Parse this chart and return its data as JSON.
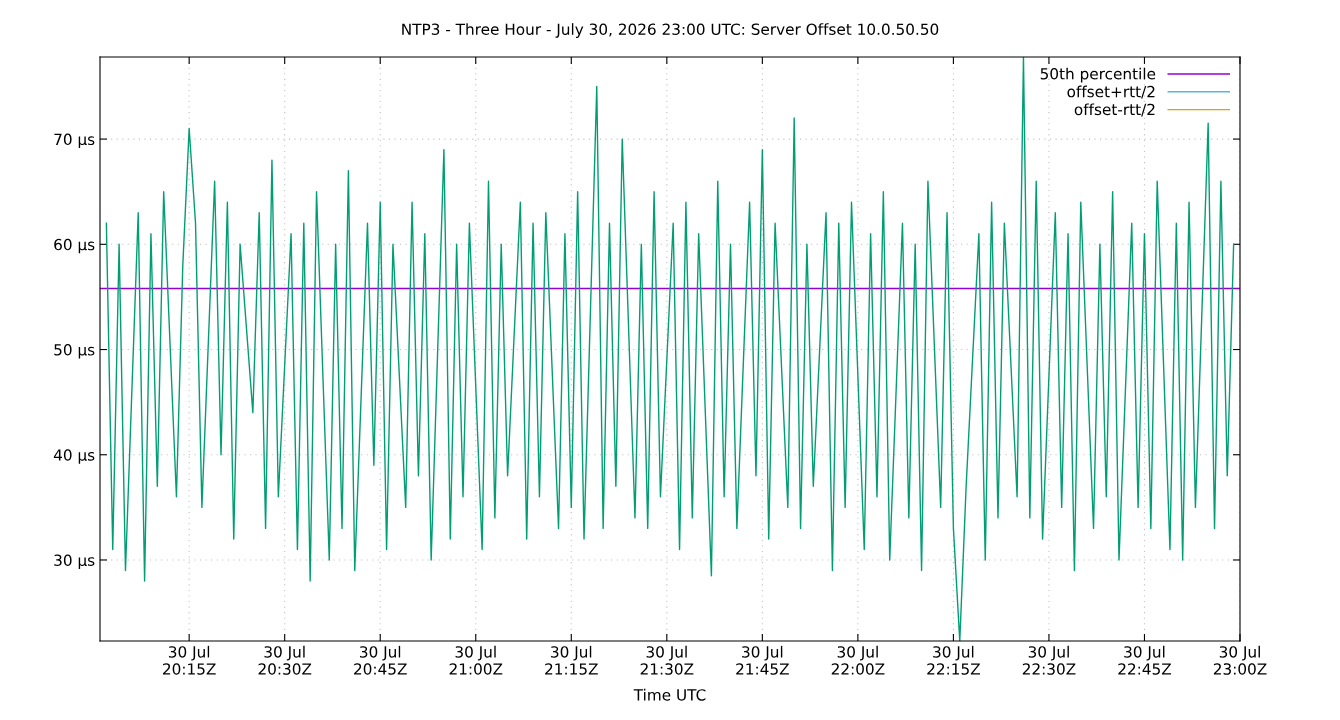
{
  "chart_data": {
    "type": "line",
    "title": "NTP3 - Three Hour - July 30, 2026 23:00 UTC: Server Offset 10.0.50.50",
    "xlabel": "Time UTC",
    "xlim": [
      "2026-07-30T20:01",
      "2026-07-30T23:00"
    ],
    "xticks": [
      {
        "value": "2026-07-30T20:15",
        "label": "30 Jul\n20:15Z"
      },
      {
        "value": "2026-07-30T20:30",
        "label": "30 Jul\n20:30Z"
      },
      {
        "value": "2026-07-30T20:45",
        "label": "30 Jul\n20:45Z"
      },
      {
        "value": "2026-07-30T21:00",
        "label": "30 Jul\n21:00Z"
      },
      {
        "value": "2026-07-30T21:15",
        "label": "30 Jul\n21:15Z"
      },
      {
        "value": "2026-07-30T21:30",
        "label": "30 Jul\n21:30Z"
      },
      {
        "value": "2026-07-30T21:45",
        "label": "30 Jul\n21:45Z"
      },
      {
        "value": "2026-07-30T22:00",
        "label": "30 Jul\n22:00Z"
      },
      {
        "value": "2026-07-30T22:15",
        "label": "30 Jul\n22:15Z"
      },
      {
        "value": "2026-07-30T22:30",
        "label": "30 Jul\n22:30Z"
      },
      {
        "value": "2026-07-30T22:45",
        "label": "30 Jul\n22:45Z"
      },
      {
        "value": "2026-07-30T23:00",
        "label": "30 Jul\n23:00Z"
      }
    ],
    "ylim": [
      22.3,
      77.8
    ],
    "yticks": [
      {
        "value": 30,
        "label": "30 µs"
      },
      {
        "value": 40,
        "label": "40 µs"
      },
      {
        "value": 50,
        "label": "50 µs"
      },
      {
        "value": 60,
        "label": "60 µs"
      },
      {
        "value": 70,
        "label": "70 µs"
      }
    ],
    "grid": true,
    "legend": "top right",
    "series": [
      {
        "name": "50th percentile",
        "color": "#9400d3",
        "x": [
          "2026-07-30T20:01",
          "2026-07-30T23:00"
        ],
        "values": [
          55.8,
          55.8
        ]
      },
      {
        "color": "#009e73",
        "x": [
          "2026-07-30T20:02",
          "2026-07-30T20:03",
          "2026-07-30T20:04",
          "2026-07-30T20:05",
          "2026-07-30T20:07",
          "2026-07-30T20:08",
          "2026-07-30T20:09",
          "2026-07-30T20:10",
          "2026-07-30T20:11",
          "2026-07-30T20:13",
          "2026-07-30T20:14",
          "2026-07-30T20:15",
          "2026-07-30T20:16",
          "2026-07-30T20:17",
          "2026-07-30T20:19",
          "2026-07-30T20:20",
          "2026-07-30T20:21",
          "2026-07-30T20:22",
          "2026-07-30T20:23",
          "2026-07-30T20:25",
          "2026-07-30T20:26",
          "2026-07-30T20:27",
          "2026-07-30T20:28",
          "2026-07-30T20:29",
          "2026-07-30T20:31",
          "2026-07-30T20:32",
          "2026-07-30T20:33",
          "2026-07-30T20:34",
          "2026-07-30T20:35",
          "2026-07-30T20:37",
          "2026-07-30T20:38",
          "2026-07-30T20:39",
          "2026-07-30T20:40",
          "2026-07-30T20:41",
          "2026-07-30T20:43",
          "2026-07-30T20:44",
          "2026-07-30T20:45",
          "2026-07-30T20:46",
          "2026-07-30T20:47",
          "2026-07-30T20:49",
          "2026-07-30T20:50",
          "2026-07-30T20:51",
          "2026-07-30T20:52",
          "2026-07-30T20:53",
          "2026-07-30T20:55",
          "2026-07-30T20:56",
          "2026-07-30T20:57",
          "2026-07-30T20:58",
          "2026-07-30T20:59",
          "2026-07-30T21:01",
          "2026-07-30T21:02",
          "2026-07-30T21:03",
          "2026-07-30T21:04",
          "2026-07-30T21:05",
          "2026-07-30T21:07",
          "2026-07-30T21:08",
          "2026-07-30T21:09",
          "2026-07-30T21:10",
          "2026-07-30T21:11",
          "2026-07-30T21:13",
          "2026-07-30T21:14",
          "2026-07-30T21:15",
          "2026-07-30T21:16",
          "2026-07-30T21:17",
          "2026-07-30T21:19",
          "2026-07-30T21:20",
          "2026-07-30T21:21",
          "2026-07-30T21:22",
          "2026-07-30T21:23",
          "2026-07-30T21:25",
          "2026-07-30T21:26",
          "2026-07-30T21:27",
          "2026-07-30T21:28",
          "2026-07-30T21:29",
          "2026-07-30T21:31",
          "2026-07-30T21:32",
          "2026-07-30T21:33",
          "2026-07-30T21:34",
          "2026-07-30T21:35",
          "2026-07-30T21:37",
          "2026-07-30T21:38",
          "2026-07-30T21:39",
          "2026-07-30T21:40",
          "2026-07-30T21:41",
          "2026-07-30T21:43",
          "2026-07-30T21:44",
          "2026-07-30T21:45",
          "2026-07-30T21:46",
          "2026-07-30T21:47",
          "2026-07-30T21:49",
          "2026-07-30T21:50",
          "2026-07-30T21:51",
          "2026-07-30T21:52",
          "2026-07-30T21:53",
          "2026-07-30T21:55",
          "2026-07-30T21:56",
          "2026-07-30T21:57",
          "2026-07-30T21:58",
          "2026-07-30T21:59",
          "2026-07-30T22:01",
          "2026-07-30T22:02",
          "2026-07-30T22:03",
          "2026-07-30T22:04",
          "2026-07-30T22:05",
          "2026-07-30T22:07",
          "2026-07-30T22:08",
          "2026-07-30T22:09",
          "2026-07-30T22:10",
          "2026-07-30T22:11",
          "2026-07-30T22:13",
          "2026-07-30T22:14",
          "2026-07-30T22:15",
          "2026-07-30T22:16",
          "2026-07-30T22:17",
          "2026-07-30T22:19",
          "2026-07-30T22:20",
          "2026-07-30T22:21",
          "2026-07-30T22:22",
          "2026-07-30T22:23",
          "2026-07-30T22:25",
          "2026-07-30T22:26",
          "2026-07-30T22:27",
          "2026-07-30T22:28",
          "2026-07-30T22:29",
          "2026-07-30T22:31",
          "2026-07-30T22:32",
          "2026-07-30T22:33",
          "2026-07-30T22:34",
          "2026-07-30T22:35",
          "2026-07-30T22:37",
          "2026-07-30T22:38",
          "2026-07-30T22:39",
          "2026-07-30T22:40",
          "2026-07-30T22:41",
          "2026-07-30T22:43",
          "2026-07-30T22:44",
          "2026-07-30T22:45",
          "2026-07-30T22:46",
          "2026-07-30T22:47",
          "2026-07-30T22:49",
          "2026-07-30T22:50",
          "2026-07-30T22:51",
          "2026-07-30T22:52",
          "2026-07-30T22:53",
          "2026-07-30T22:55",
          "2026-07-30T22:56",
          "2026-07-30T22:57",
          "2026-07-30T22:58",
          "2026-07-30T22:59"
        ],
        "values": [
          62,
          31,
          60,
          29,
          63,
          28,
          61,
          37,
          65,
          36,
          58,
          71,
          62,
          35,
          66,
          40,
          64,
          32,
          60,
          44,
          63,
          33,
          68,
          36,
          61,
          31,
          62,
          28,
          65,
          30,
          60,
          33,
          67,
          29,
          62,
          39,
          64,
          31,
          60,
          35,
          64,
          38,
          61,
          30,
          69,
          32,
          60,
          36,
          62,
          31,
          66,
          34,
          60,
          38,
          64,
          32,
          62,
          36,
          63,
          33,
          61,
          35,
          65,
          32,
          75,
          33,
          62,
          37,
          70,
          34,
          60,
          33,
          65,
          36,
          62,
          31,
          64,
          34,
          61,
          28.5,
          66,
          36,
          60,
          33,
          64,
          38,
          69,
          32,
          62,
          35,
          72,
          33,
          60,
          37,
          63,
          29,
          62,
          35,
          64,
          31,
          61,
          36,
          65,
          30,
          62,
          34,
          60,
          29,
          66,
          35,
          63,
          33,
          22.3,
          37,
          61,
          30,
          64,
          34,
          62,
          36,
          77.8,
          34,
          66,
          32,
          63,
          35,
          61,
          29,
          64,
          33,
          60,
          36,
          65,
          30,
          62,
          35,
          61,
          33,
          66,
          31,
          62,
          30,
          64,
          35,
          71.5,
          33,
          66,
          38,
          60
        ]
      },
      {
        "name": "offset+rtt/2",
        "color": "#56b4e9"
      },
      {
        "name": "offset-rtt/2",
        "color": "#e69f00"
      }
    ]
  }
}
